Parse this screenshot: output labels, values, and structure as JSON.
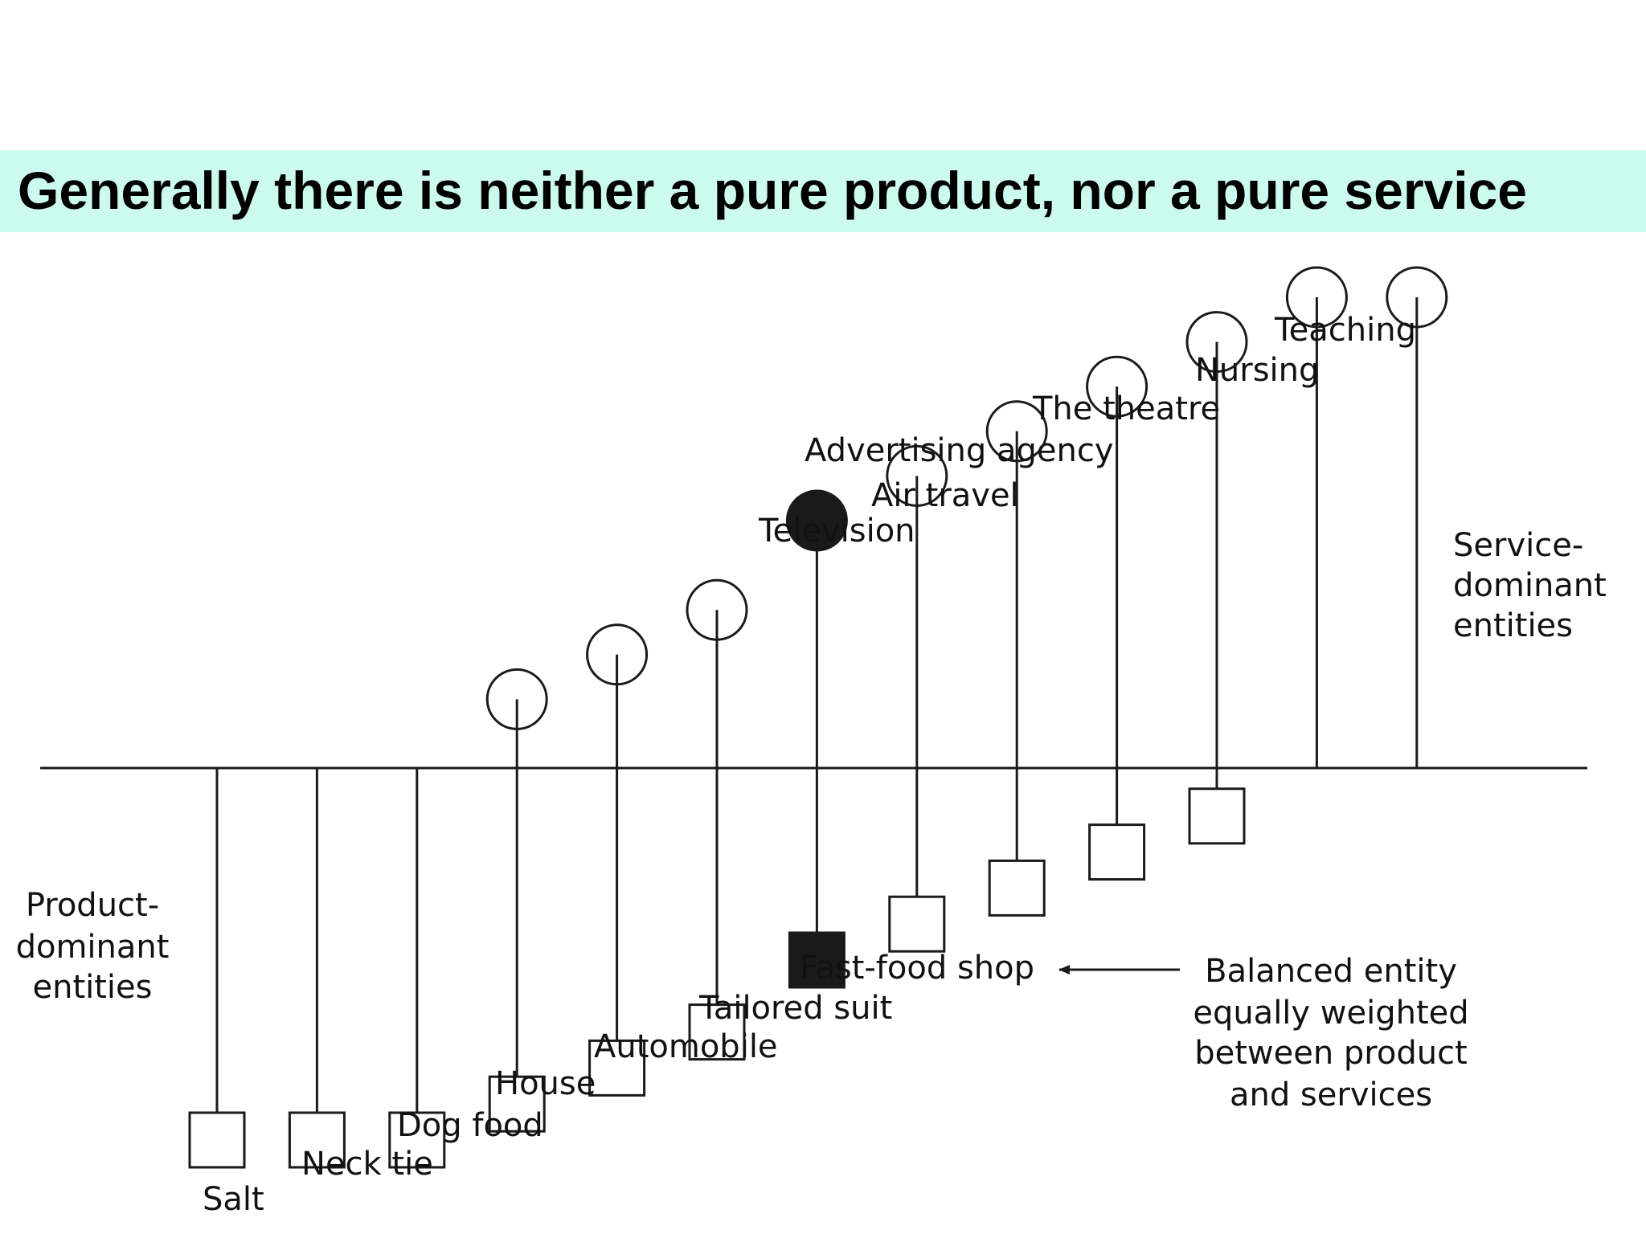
{
  "title": "Generally there is neither a pure product, nor a pure service",
  "colors": {
    "title_background": "#ccfaee",
    "line": "#1a1a1a",
    "balanced_fill": "#1a1a1a"
  },
  "diagram": {
    "entities": [
      {
        "name": "Salt",
        "product_share": 1.0,
        "balanced": false
      },
      {
        "name": "Neck tie",
        "product_share": 1.0,
        "balanced": false
      },
      {
        "name": "Dog food",
        "product_share": 1.0,
        "balanced": false
      },
      {
        "name": "House",
        "product_share": 0.9,
        "balanced": false
      },
      {
        "name": "Automobile",
        "product_share": 0.8,
        "balanced": false
      },
      {
        "name": "Tailored suit",
        "product_share": 0.7,
        "balanced": false
      },
      {
        "name": "Fast-food shop",
        "product_share": 0.5,
        "balanced": true
      },
      {
        "name": "Television",
        "product_share": 0.4,
        "balanced": false
      },
      {
        "name": "Air travel",
        "product_share": 0.3,
        "balanced": false
      },
      {
        "name": "Advertising agency",
        "product_share": 0.2,
        "balanced": false
      },
      {
        "name": "The theatre",
        "product_share": 0.1,
        "balanced": false
      },
      {
        "name": "Nursing",
        "product_share": 0.0,
        "balanced": false
      },
      {
        "name": "Teaching",
        "product_share": 0.0,
        "balanced": false
      }
    ],
    "product_dominant_label": [
      "Product-",
      "dominant",
      "entities"
    ],
    "service_dominant_label": [
      "Service-",
      "dominant",
      "entities"
    ],
    "balanced_label": [
      "Balanced entity",
      "equally weighted",
      "between product",
      "and services"
    ]
  }
}
